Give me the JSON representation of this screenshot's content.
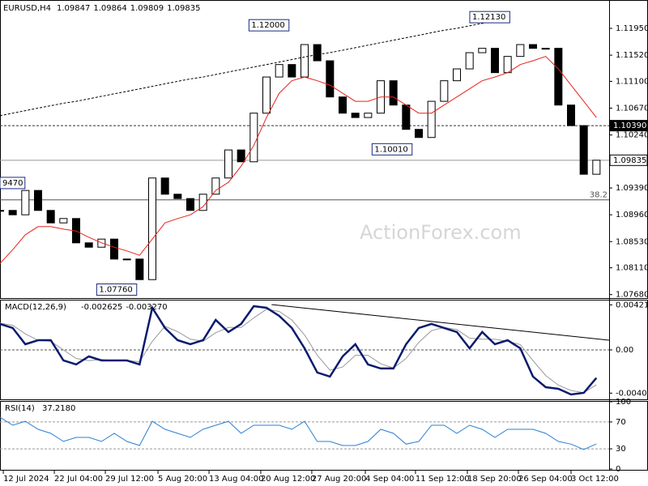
{
  "watermark": "ActionForex.com",
  "time_axis": {
    "xlim": [
      0,
      48
    ],
    "xticks": [
      {
        "value": 0.26,
        "label": "12 Jul 2024"
      },
      {
        "value": 4.28,
        "label": "22 Jul 04:00"
      },
      {
        "value": 8.3,
        "label": "29 Jul 12:00"
      },
      {
        "value": 12.45,
        "label": "5 Aug 20:00"
      },
      {
        "value": 16.47,
        "label": "13 Aug 04:00"
      },
      {
        "value": 20.55,
        "label": "20 Aug 12:00"
      },
      {
        "value": 24.57,
        "label": "27 Aug 20:00"
      },
      {
        "value": 28.79,
        "label": "4 Sep 04:00"
      },
      {
        "value": 32.74,
        "label": "11 Sep 12:00"
      },
      {
        "value": 36.83,
        "label": "18 Sep 20:00"
      },
      {
        "value": 40.85,
        "label": "26 Sep 04:00"
      },
      {
        "value": 45.0,
        "label": "3 Oct 12:00"
      }
    ]
  },
  "chart_data": [
    {
      "type": "candles",
      "title": "EURUSD,H4",
      "ohlc": [
        1.09847,
        1.09864,
        1.09809,
        1.09835
      ],
      "ylim": [
        1.07624,
        1.12405
      ],
      "yticks": [
        {
          "value": 1.1195,
          "label": "1.11950"
        },
        {
          "value": 1.1152,
          "label": "1.11520"
        },
        {
          "value": 1.111,
          "label": "1.11100"
        },
        {
          "value": 1.1067,
          "label": "1.10670"
        },
        {
          "value": 1.1024,
          "label": "1.10240"
        },
        {
          "value": 1.0939,
          "label": "1.09390"
        },
        {
          "value": 1.0896,
          "label": "1.08960"
        },
        {
          "value": 1.0853,
          "label": "1.08530"
        },
        {
          "value": 1.0811,
          "label": "1.08110"
        },
        {
          "value": 1.0768,
          "label": "1.07680"
        }
      ],
      "series": [
        {
          "color": "#000000",
          "values": [
            1.0903,
            1.0896,
            1.0935,
            1.0903,
            1.0883,
            1.089,
            1.0851,
            1.0844,
            1.0857,
            1.0825,
            1.0825,
            1.0792,
            1.0955,
            1.0929,
            1.0922,
            1.0903,
            1.0929,
            1.0955,
            1.1,
            1.0981,
            1.1059,
            1.1117,
            1.1137,
            1.1117,
            1.1169,
            1.1143,
            1.1085,
            1.1059,
            1.1052,
            1.1059,
            1.1111,
            1.1072,
            1.1033,
            1.102,
            1.1078,
            1.1111,
            1.113,
            1.1156,
            1.1163,
            1.1124,
            1.115,
            1.1169,
            1.1163,
            1.1163,
            1.1072,
            1.1039,
            1.0961,
            1.09835
          ]
        },
        {
          "color": "#e8221b",
          "values": [
            1.0818,
            1.084,
            1.0864,
            1.0877,
            1.0877,
            1.0873,
            1.087,
            1.086,
            1.0851,
            1.0844,
            1.0838,
            1.0831,
            1.0857,
            1.0883,
            1.089,
            1.0896,
            1.0909,
            1.0935,
            1.0948,
            1.0974,
            1.1007,
            1.1052,
            1.1091,
            1.1111,
            1.1117,
            1.1111,
            1.1104,
            1.1091,
            1.1078,
            1.1078,
            1.1085,
            1.1085,
            1.1072,
            1.1059,
            1.1059,
            1.1072,
            1.1085,
            1.1098,
            1.1111,
            1.1117,
            1.1124,
            1.1137,
            1.1143,
            1.115,
            1.113,
            1.1104,
            1.1078,
            1.1052
          ]
        },
        {
          "color": "#000000",
          "dashed": true,
          "values": [
            1.1055,
            1.1059,
            1.1063,
            1.1067,
            1.1071,
            1.1075,
            1.1078,
            1.1082,
            1.1086,
            1.109,
            1.1094,
            1.1098,
            1.1102,
            1.1106,
            1.111,
            1.1114,
            1.1117,
            1.1121,
            1.1125,
            1.1129,
            1.1133,
            1.1137,
            1.1141,
            1.1145,
            1.1149,
            1.1153,
            1.1156,
            1.116,
            1.1164,
            1.1168,
            1.1172,
            1.1176,
            1.118,
            1.1184,
            1.1188,
            1.1192,
            1.1195,
            1.1199,
            1.1203,
            1.1207,
            1.1211,
            null,
            null,
            null,
            null,
            null,
            null,
            null
          ]
        }
      ],
      "annotations": [
        {
          "value": 1.0947,
          "label": "9470",
          "x": 0
        },
        {
          "value": 1.12,
          "label": "1.12000",
          "x": 22.9
        },
        {
          "value": 1.1213,
          "label": "1.12130",
          "x": 40.3
        },
        {
          "value": 1.1001,
          "label": "1.10010",
          "x": 32.6
        },
        {
          "value": 1.0776,
          "label": "1.07760",
          "x": 10.9
        }
      ],
      "levels": [
        {
          "value": 1.1039,
          "label": "1.10390"
        },
        {
          "value": 1.09835,
          "label": "1.09835"
        }
      ],
      "fib_level": {
        "text": "38.2",
        "price": 1.092
      }
    },
    {
      "type": "macd",
      "title": "MACD(12,26,9)",
      "readout": [
        {
          "value": -0.002625,
          "label": "-0.002625"
        },
        {
          "value": -0.00327,
          "label": "-0.003270"
        }
      ],
      "ylim": [
        -0.00455,
        0.00462
      ],
      "yticks": [
        0.004214,
        {
          "value": 0,
          "label": "0.00"
        },
        -0.004047
      ],
      "series": [
        {
          "color": "#0a1a6e",
          "values": [
            0.00243,
            0.00205,
            0.00053,
            0.00091,
            0.00091,
            -0.00099,
            -0.00136,
            -0.00061,
            -0.00099,
            -0.00099,
            -0.00099,
            -0.00136,
            0.00394,
            0.00205,
            0.00091,
            0.00053,
            0.00091,
            0.0028,
            0.00167,
            0.00243,
            0.00409,
            0.00394,
            0.00318,
            0.00205,
            0.00015,
            -0.00212,
            -0.0025,
            -0.00061,
            0.00053,
            -0.00136,
            -0.00174,
            -0.00174,
            0.00053,
            0.00205,
            0.00243,
            0.00205,
            0.00167,
            0.00015,
            0.00167,
            0.00053,
            0.00091,
            0.00015,
            -0.0025,
            -0.00349,
            -0.00364,
            -0.00417,
            -0.00402,
            -0.002625
          ]
        },
        {
          "color": "#999999",
          "values": [
            0.0025,
            0.0023,
            0.0015,
            0.0009,
            0.0008,
            0.0,
            -0.0008,
            -0.001,
            -0.0009,
            -0.001,
            -0.001,
            -0.0011,
            0.0008,
            0.0022,
            0.0017,
            0.001,
            0.0008,
            0.0016,
            0.0021,
            0.0021,
            0.003,
            0.0038,
            0.0036,
            0.0028,
            0.0014,
            -0.0005,
            -0.0019,
            -0.0016,
            -0.0005,
            -0.0005,
            -0.0013,
            -0.0017,
            -0.0008,
            0.0007,
            0.0018,
            0.0021,
            0.0019,
            0.0011,
            0.001,
            0.001,
            0.0008,
            0.0005,
            -0.001,
            -0.0024,
            -0.0033,
            -0.0038,
            -0.004,
            -0.00327
          ]
        }
      ],
      "trendline": {
        "x": [
          21.4,
          48
        ],
        "values": [
          0.00424,
          0.00091
        ]
      }
    },
    {
      "type": "rsi",
      "title": "RSI(14)",
      "readout": {
        "value": 37.218,
        "label": "37.2180"
      },
      "ylim": [
        0,
        100
      ],
      "yticks": [
        100,
        70,
        30,
        0
      ],
      "levels": [
        70,
        30
      ],
      "series": [
        {
          "color": "#2a7fd4",
          "values": [
            77,
            65,
            71,
            59,
            53,
            41,
            47,
            47,
            41,
            53,
            41,
            35,
            71,
            59,
            53,
            47,
            59,
            65,
            71,
            53,
            65,
            65,
            65,
            59,
            71,
            41,
            41,
            35,
            35,
            41,
            59,
            53,
            37,
            41,
            65,
            65,
            53,
            65,
            59,
            47,
            59,
            59,
            59,
            53,
            41,
            37,
            29,
            37.218
          ]
        }
      ]
    }
  ]
}
